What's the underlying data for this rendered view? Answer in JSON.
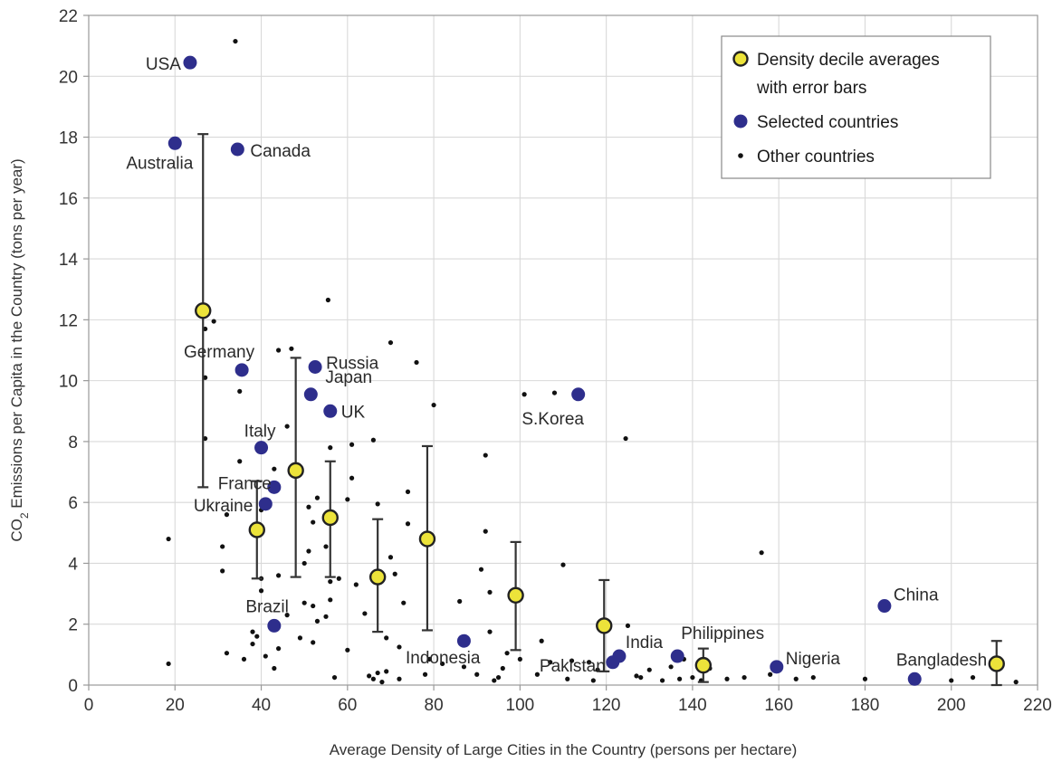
{
  "chart_data": {
    "type": "scatter",
    "xlabel": "Average Density of Large Cities in the Country (persons per hectare)",
    "ylabel": "CO2 Emissions per Capita in the Country (tons per year)",
    "xlim": [
      0,
      220
    ],
    "ylim": [
      0,
      22
    ],
    "x_ticks": [
      "0",
      "20",
      "40",
      "60",
      "80",
      "100",
      "120",
      "140",
      "160",
      "180",
      "200",
      "220"
    ],
    "y_ticks": [
      "0",
      "2",
      "4",
      "6",
      "8",
      "10",
      "12",
      "14",
      "16",
      "18",
      "20",
      "22"
    ],
    "grid": true,
    "legend_position": "top-right",
    "legend": [
      {
        "marker": "yellow-circle",
        "label_line1": "Density decile averages",
        "label_line2": "with error bars"
      },
      {
        "marker": "blue-dot",
        "label_line1": "Selected countries"
      },
      {
        "marker": "black-dot",
        "label_line1": "Other countries"
      }
    ],
    "colors": {
      "selected": "#2e2e8c",
      "decile_fill": "#ece33a",
      "decile_stroke": "#222222",
      "other": "#111111",
      "grid": "#d9d9d9",
      "axis": "#999999"
    },
    "series": [
      {
        "name": "Density decile averages with error bars",
        "points": [
          {
            "x": 26.5,
            "y": 12.3,
            "low": 6.5,
            "high": 18.1
          },
          {
            "x": 39,
            "y": 5.1,
            "low": 3.5,
            "high": 6.7
          },
          {
            "x": 48,
            "y": 7.05,
            "low": 3.55,
            "high": 10.75
          },
          {
            "x": 56,
            "y": 5.5,
            "low": 3.55,
            "high": 7.35
          },
          {
            "x": 67,
            "y": 3.55,
            "low": 1.75,
            "high": 5.45
          },
          {
            "x": 78.5,
            "y": 4.8,
            "low": 1.8,
            "high": 7.85
          },
          {
            "x": 99,
            "y": 2.95,
            "low": 1.15,
            "high": 4.7
          },
          {
            "x": 119.5,
            "y": 1.95,
            "low": 0.45,
            "high": 3.45
          },
          {
            "x": 142.5,
            "y": 0.65,
            "low": 0.1,
            "high": 1.2
          },
          {
            "x": 210.5,
            "y": 0.7,
            "low": 0.0,
            "high": 1.45
          }
        ]
      },
      {
        "name": "Selected countries",
        "points": [
          {
            "label": "USA",
            "x": 23.5,
            "y": 20.45
          },
          {
            "label": "Australia",
            "x": 20,
            "y": 17.8
          },
          {
            "label": "Canada",
            "x": 34.5,
            "y": 17.6
          },
          {
            "label": "Germany",
            "x": 35.5,
            "y": 10.35
          },
          {
            "label": "Russia",
            "x": 52.5,
            "y": 10.45
          },
          {
            "label": "Japan",
            "x": 51.5,
            "y": 9.55
          },
          {
            "label": "UK",
            "x": 56,
            "y": 9.0
          },
          {
            "label": "Italy",
            "x": 40,
            "y": 7.8
          },
          {
            "label": "France",
            "x": 43,
            "y": 6.5
          },
          {
            "label": "Ukraine",
            "x": 41,
            "y": 5.95
          },
          {
            "label": "Brazil",
            "x": 43,
            "y": 1.95
          },
          {
            "label": "Indonesia",
            "x": 87,
            "y": 1.45
          },
          {
            "label": "Pakistan",
            "x": 121.5,
            "y": 0.75
          },
          {
            "label": "India",
            "x": 123,
            "y": 0.95
          },
          {
            "label": "Philippines",
            "x": 136.5,
            "y": 0.95
          },
          {
            "label": "Nigeria",
            "x": 159.5,
            "y": 0.6
          },
          {
            "label": "China",
            "x": 184.5,
            "y": 2.6
          },
          {
            "label": "Bangladesh",
            "x": 191.5,
            "y": 0.2
          },
          {
            "label": "S.Korea",
            "x": 113.5,
            "y": 9.55
          }
        ]
      },
      {
        "name": "Other countries",
        "points": [
          [
            34,
            21.15
          ],
          [
            18.5,
            4.8
          ],
          [
            18.5,
            0.7
          ],
          [
            27,
            8.1
          ],
          [
            27,
            10.1
          ],
          [
            27,
            11.7
          ],
          [
            29,
            11.95
          ],
          [
            31,
            4.55
          ],
          [
            31,
            3.75
          ],
          [
            32,
            5.6
          ],
          [
            32,
            1.05
          ],
          [
            35,
            9.65
          ],
          [
            35,
            7.35
          ],
          [
            36,
            0.85
          ],
          [
            38,
            1.75
          ],
          [
            38,
            1.35
          ],
          [
            39,
            1.6
          ],
          [
            40,
            5.75
          ],
          [
            40,
            5.1
          ],
          [
            40,
            3.5
          ],
          [
            40,
            3.1
          ],
          [
            41,
            0.95
          ],
          [
            43,
            7.1
          ],
          [
            43,
            0.55
          ],
          [
            44,
            11.0
          ],
          [
            44,
            3.6
          ],
          [
            44,
            1.2
          ],
          [
            46,
            8.5
          ],
          [
            46,
            2.3
          ],
          [
            47,
            11.05
          ],
          [
            49,
            1.55
          ],
          [
            50,
            4.0
          ],
          [
            50,
            2.7
          ],
          [
            51,
            4.4
          ],
          [
            51,
            5.85
          ],
          [
            52,
            5.35
          ],
          [
            52,
            2.6
          ],
          [
            52,
            1.4
          ],
          [
            53,
            6.15
          ],
          [
            53,
            2.1
          ],
          [
            55,
            4.55
          ],
          [
            55,
            2.25
          ],
          [
            55.5,
            12.65
          ],
          [
            56,
            7.8
          ],
          [
            56,
            3.4
          ],
          [
            56,
            2.8
          ],
          [
            57,
            0.25
          ],
          [
            58,
            3.5
          ],
          [
            60,
            6.1
          ],
          [
            60,
            1.15
          ],
          [
            61,
            7.9
          ],
          [
            61,
            6.8
          ],
          [
            62,
            3.3
          ],
          [
            64,
            2.35
          ],
          [
            65,
            0.3
          ],
          [
            66,
            8.05
          ],
          [
            66,
            0.2
          ],
          [
            67,
            5.95
          ],
          [
            67,
            0.4
          ],
          [
            68,
            0.1
          ],
          [
            69,
            1.55
          ],
          [
            69,
            0.45
          ],
          [
            70,
            11.25
          ],
          [
            70,
            4.2
          ],
          [
            71,
            3.65
          ],
          [
            72,
            1.25
          ],
          [
            72,
            0.2
          ],
          [
            73,
            2.7
          ],
          [
            74,
            6.35
          ],
          [
            74,
            5.3
          ],
          [
            76,
            10.6
          ],
          [
            78,
            0.35
          ],
          [
            79,
            0.85
          ],
          [
            80,
            9.2
          ],
          [
            82,
            0.7
          ],
          [
            86,
            2.75
          ],
          [
            87,
            0.6
          ],
          [
            90,
            0.35
          ],
          [
            91,
            3.8
          ],
          [
            92,
            7.55
          ],
          [
            92,
            5.05
          ],
          [
            93,
            3.05
          ],
          [
            93,
            1.75
          ],
          [
            94,
            0.15
          ],
          [
            95,
            0.25
          ],
          [
            96,
            0.55
          ],
          [
            97,
            1.05
          ],
          [
            100,
            0.85
          ],
          [
            101,
            9.55
          ],
          [
            104,
            0.35
          ],
          [
            105,
            1.45
          ],
          [
            107,
            0.75
          ],
          [
            108,
            9.6
          ],
          [
            110,
            3.95
          ],
          [
            111,
            0.2
          ],
          [
            112,
            0.8
          ],
          [
            116,
            0.75
          ],
          [
            117,
            0.15
          ],
          [
            118,
            0.5
          ],
          [
            124.5,
            8.1
          ],
          [
            125,
            1.95
          ],
          [
            127,
            0.3
          ],
          [
            128,
            0.25
          ],
          [
            130,
            0.5
          ],
          [
            133,
            0.15
          ],
          [
            135,
            0.6
          ],
          [
            137,
            0.2
          ],
          [
            138,
            0.85
          ],
          [
            140,
            0.25
          ],
          [
            142,
            0.15
          ],
          [
            144,
            0.55
          ],
          [
            148,
            0.2
          ],
          [
            152,
            0.25
          ],
          [
            156,
            4.35
          ],
          [
            158,
            0.35
          ],
          [
            164,
            0.2
          ],
          [
            168,
            0.25
          ],
          [
            180,
            0.2
          ],
          [
            200,
            0.15
          ],
          [
            205,
            0.25
          ],
          [
            215,
            0.1
          ]
        ]
      }
    ]
  }
}
